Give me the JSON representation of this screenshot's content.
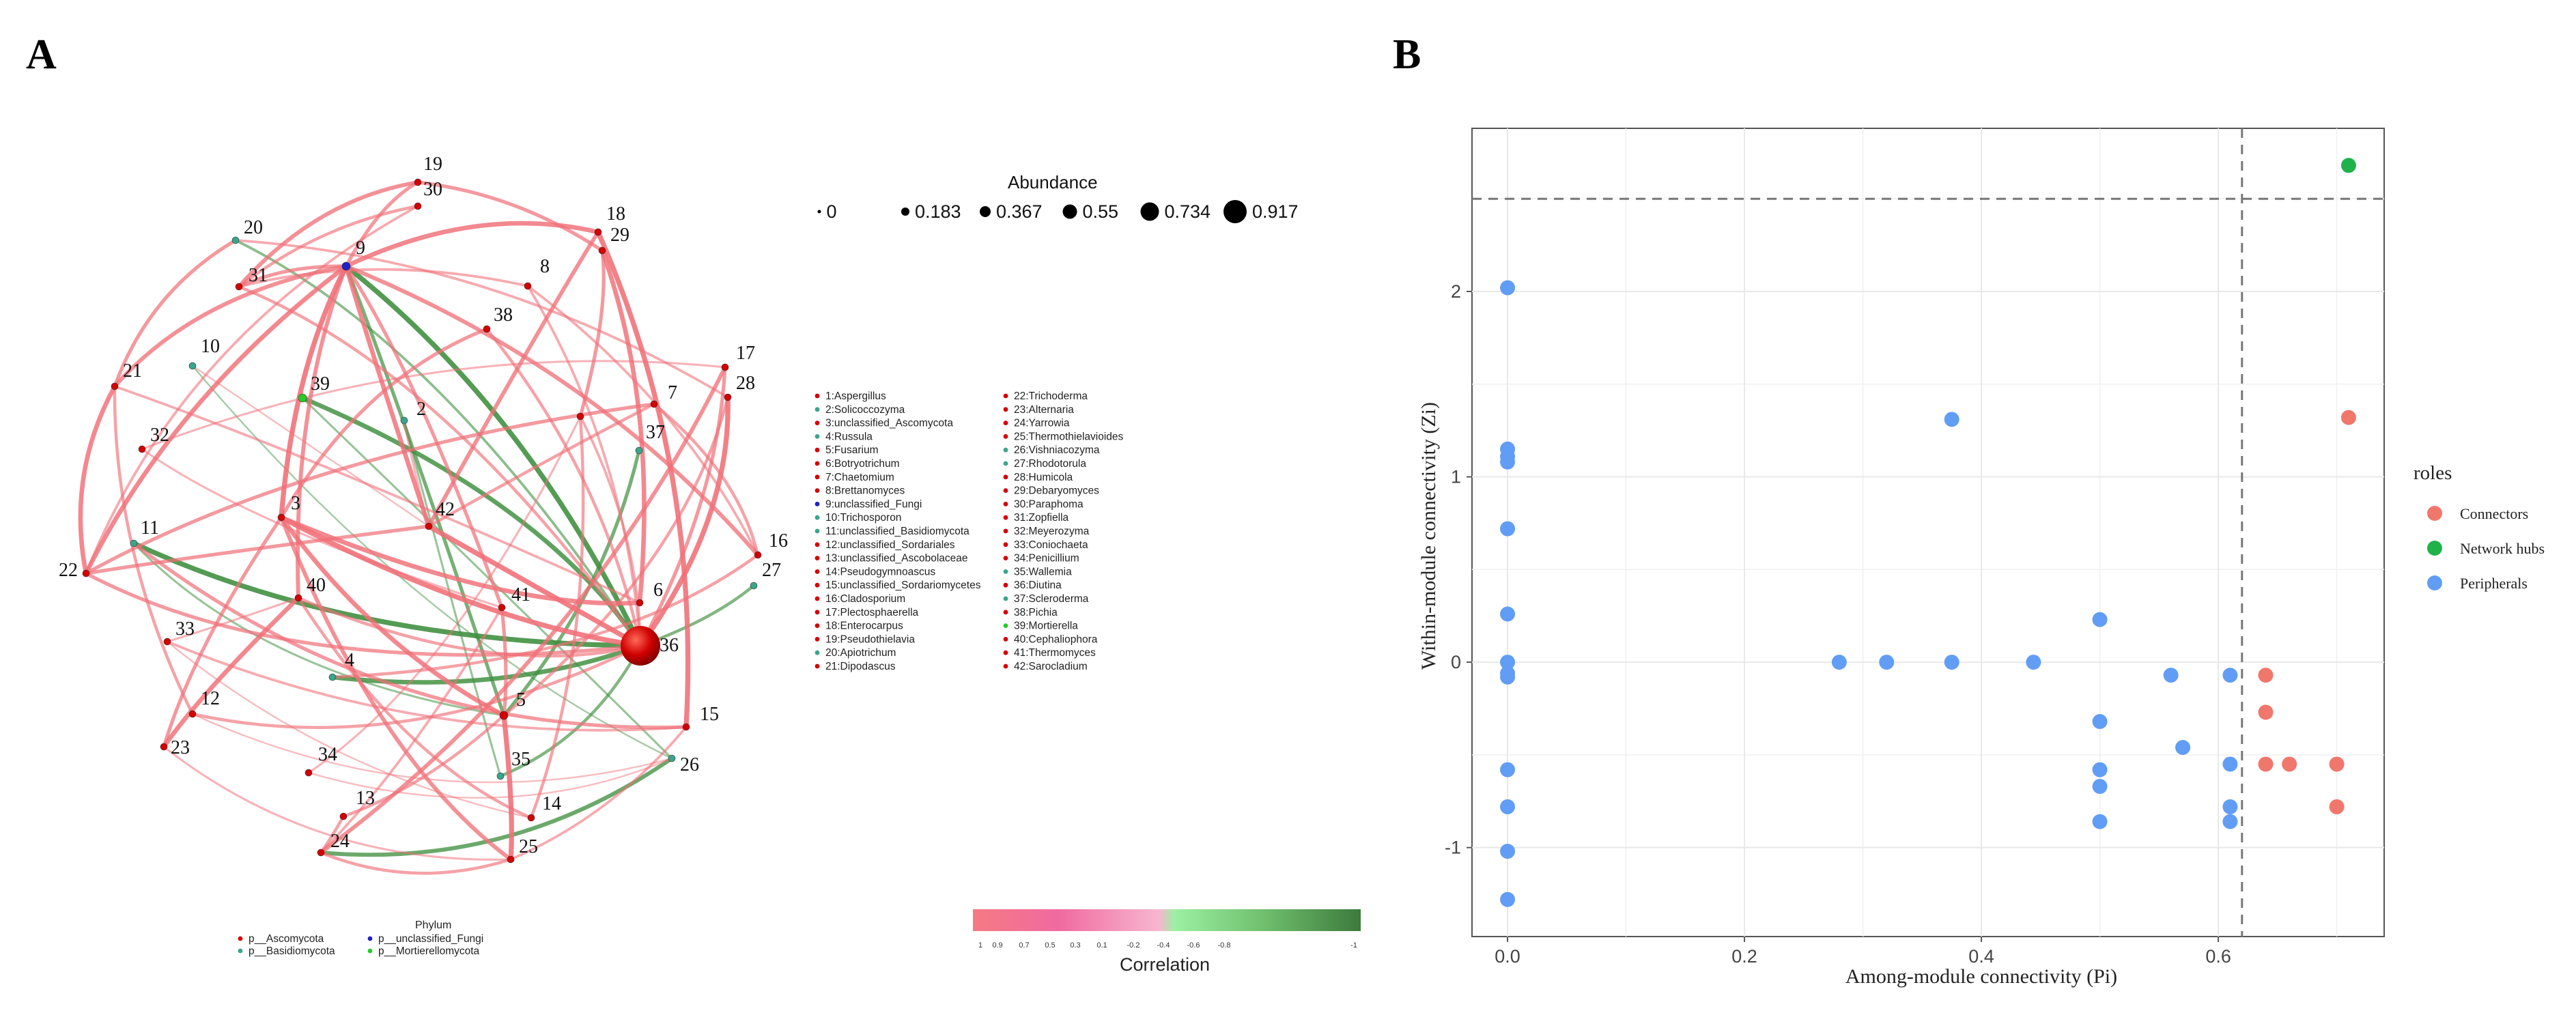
{
  "panels": {
    "a_label": "A",
    "b_label": "B"
  },
  "network": {
    "nodes": [
      {
        "id": "1",
        "phylum": "Ascomycota",
        "abundance": 0.01
      },
      {
        "id": "2",
        "phylum": "Basidiomycota",
        "abundance": 0.01
      },
      {
        "id": "3",
        "phylum": "Ascomycota",
        "abundance": 0.01
      },
      {
        "id": "4",
        "phylum": "Basidiomycota",
        "abundance": 0.01
      },
      {
        "id": "5",
        "phylum": "Ascomycota",
        "abundance": 0.02
      },
      {
        "id": "6",
        "phylum": "Ascomycota",
        "abundance": 0.01
      },
      {
        "id": "7",
        "phylum": "Ascomycota",
        "abundance": 0.01
      },
      {
        "id": "8",
        "phylum": "Ascomycota",
        "abundance": 0.01
      },
      {
        "id": "9",
        "phylum": "unclassified_Fungi",
        "abundance": 0.02
      },
      {
        "id": "10",
        "phylum": "Basidiomycota",
        "abundance": 0.01
      },
      {
        "id": "11",
        "phylum": "Basidiomycota",
        "abundance": 0.01
      },
      {
        "id": "12",
        "phylum": "Ascomycota",
        "abundance": 0.01
      },
      {
        "id": "13",
        "phylum": "Ascomycota",
        "abundance": 0.01
      },
      {
        "id": "14",
        "phylum": "Ascomycota",
        "abundance": 0.01
      },
      {
        "id": "15",
        "phylum": "Ascomycota",
        "abundance": 0.01
      },
      {
        "id": "16",
        "phylum": "Ascomycota",
        "abundance": 0.01
      },
      {
        "id": "17",
        "phylum": "Ascomycota",
        "abundance": 0.01
      },
      {
        "id": "18",
        "phylum": "Ascomycota",
        "abundance": 0.01
      },
      {
        "id": "19",
        "phylum": "Ascomycota",
        "abundance": 0.01
      },
      {
        "id": "20",
        "phylum": "Basidiomycota",
        "abundance": 0.01
      },
      {
        "id": "21",
        "phylum": "Ascomycota",
        "abundance": 0.01
      },
      {
        "id": "22",
        "phylum": "Ascomycota",
        "abundance": 0.01
      },
      {
        "id": "23",
        "phylum": "Ascomycota",
        "abundance": 0.01
      },
      {
        "id": "24",
        "phylum": "Ascomycota",
        "abundance": 0.01
      },
      {
        "id": "25",
        "phylum": "Ascomycota",
        "abundance": 0.01
      },
      {
        "id": "26",
        "phylum": "Basidiomycota",
        "abundance": 0.01
      },
      {
        "id": "27",
        "phylum": "Basidiomycota",
        "abundance": 0.01
      },
      {
        "id": "28",
        "phylum": "Ascomycota",
        "abundance": 0.01
      },
      {
        "id": "29",
        "phylum": "Ascomycota",
        "abundance": 0.01
      },
      {
        "id": "30",
        "phylum": "Ascomycota",
        "abundance": 0.01
      },
      {
        "id": "31",
        "phylum": "Ascomycota",
        "abundance": 0.01
      },
      {
        "id": "32",
        "phylum": "Ascomycota",
        "abundance": 0.01
      },
      {
        "id": "33",
        "phylum": "Ascomycota",
        "abundance": 0.01
      },
      {
        "id": "34",
        "phylum": "Ascomycota",
        "abundance": 0.01
      },
      {
        "id": "35",
        "phylum": "Basidiomycota",
        "abundance": 0.01
      },
      {
        "id": "36",
        "phylum": "Ascomycota",
        "abundance": 0.917
      },
      {
        "id": "37",
        "phylum": "Basidiomycota",
        "abundance": 0.01
      },
      {
        "id": "38",
        "phylum": "Ascomycota",
        "abundance": 0.01
      },
      {
        "id": "39",
        "phylum": "Mortierellomycota",
        "abundance": 0.02
      },
      {
        "id": "40",
        "phylum": "Ascomycota",
        "abundance": 0.01
      },
      {
        "id": "41",
        "phylum": "Ascomycota",
        "abundance": 0.01
      },
      {
        "id": "42",
        "phylum": "Ascomycota",
        "abundance": 0.01
      }
    ],
    "edges": [
      {
        "s": "9",
        "t": "36",
        "r": -0.9
      },
      {
        "s": "9",
        "t": "5",
        "r": -0.6
      },
      {
        "s": "11",
        "t": "36",
        "r": -0.9
      },
      {
        "s": "39",
        "t": "36",
        "r": -0.8
      },
      {
        "s": "4",
        "t": "36",
        "r": -0.8
      },
      {
        "s": "24",
        "t": "26",
        "r": -0.7
      },
      {
        "s": "37",
        "t": "5",
        "r": -0.6
      },
      {
        "s": "20",
        "t": "36",
        "r": -0.4
      },
      {
        "s": "27",
        "t": "36",
        "r": -0.5
      },
      {
        "s": "35",
        "t": "36",
        "r": -0.5
      },
      {
        "s": "39",
        "t": "26",
        "r": -0.3
      },
      {
        "s": "11",
        "t": "5",
        "r": -0.3
      },
      {
        "s": "10",
        "t": "26",
        "r": -0.2
      },
      {
        "s": "2",
        "t": "35",
        "r": -0.3
      },
      {
        "s": "9",
        "t": "3",
        "r": 0.9
      },
      {
        "s": "9",
        "t": "42",
        "r": 0.8
      },
      {
        "s": "9",
        "t": "22",
        "r": 0.8
      },
      {
        "s": "9",
        "t": "18",
        "r": 0.8
      },
      {
        "s": "9",
        "t": "16",
        "r": 0.7
      },
      {
        "s": "9",
        "t": "21",
        "r": 0.7
      },
      {
        "s": "9",
        "t": "31",
        "r": 0.6
      },
      {
        "s": "9",
        "t": "19",
        "r": 0.6
      },
      {
        "s": "9",
        "t": "40",
        "r": 0.7
      },
      {
        "s": "9",
        "t": "41",
        "r": 0.6
      },
      {
        "s": "18",
        "t": "15",
        "r": 0.9
      },
      {
        "s": "18",
        "t": "42",
        "r": 0.7
      },
      {
        "s": "29",
        "t": "6",
        "r": 0.8
      },
      {
        "s": "29",
        "t": "1",
        "r": 0.6
      },
      {
        "s": "17",
        "t": "24",
        "r": 0.7
      },
      {
        "s": "28",
        "t": "36",
        "r": 0.9
      },
      {
        "s": "3",
        "t": "36",
        "r": 0.9
      },
      {
        "s": "3",
        "t": "6",
        "r": 0.8
      },
      {
        "s": "3",
        "t": "5",
        "r": 0.8
      },
      {
        "s": "3",
        "t": "25",
        "r": 0.7
      },
      {
        "s": "42",
        "t": "36",
        "r": 0.9
      },
      {
        "s": "42",
        "t": "22",
        "r": 0.6
      },
      {
        "s": "42",
        "t": "7",
        "r": 0.5
      },
      {
        "s": "5",
        "t": "25",
        "r": 0.9
      },
      {
        "s": "5",
        "t": "13",
        "r": 0.5
      },
      {
        "s": "22",
        "t": "21",
        "r": 0.8
      },
      {
        "s": "22",
        "t": "7",
        "r": 0.6
      },
      {
        "s": "21",
        "t": "20",
        "r": 0.6
      },
      {
        "s": "21",
        "t": "12",
        "r": 0.5
      },
      {
        "s": "23",
        "t": "40",
        "r": 0.8
      },
      {
        "s": "23",
        "t": "3",
        "r": 0.6
      },
      {
        "s": "12",
        "t": "36",
        "r": 0.5
      },
      {
        "s": "13",
        "t": "24",
        "r": 0.5
      },
      {
        "s": "24",
        "t": "25",
        "r": 0.5
      },
      {
        "s": "24",
        "t": "41",
        "r": 0.4
      },
      {
        "s": "14",
        "t": "40",
        "r": 0.5
      },
      {
        "s": "14",
        "t": "1",
        "r": 0.5
      },
      {
        "s": "15",
        "t": "11",
        "r": 0.6
      },
      {
        "s": "15",
        "t": "33",
        "r": 0.4
      },
      {
        "s": "16",
        "t": "4",
        "r": 0.5
      },
      {
        "s": "16",
        "t": "8",
        "r": 0.4
      },
      {
        "s": "19",
        "t": "31",
        "r": 0.7
      },
      {
        "s": "30",
        "t": "31",
        "r": 0.5
      },
      {
        "s": "30",
        "t": "22",
        "r": 0.4
      },
      {
        "s": "19",
        "t": "29",
        "r": 0.6
      },
      {
        "s": "38",
        "t": "3",
        "r": 0.6
      },
      {
        "s": "8",
        "t": "31",
        "r": 0.4
      },
      {
        "s": "32",
        "t": "41",
        "r": 0.3
      },
      {
        "s": "33",
        "t": "40",
        "r": 0.3
      },
      {
        "s": "34",
        "t": "1",
        "r": 0.3
      },
      {
        "s": "6",
        "t": "21",
        "r": 0.4
      },
      {
        "s": "7",
        "t": "16",
        "r": 0.5
      },
      {
        "s": "20",
        "t": "28",
        "r": 0.4
      },
      {
        "s": "10",
        "t": "42",
        "r": 0.2
      },
      {
        "s": "41",
        "t": "5",
        "r": 0.6
      },
      {
        "s": "40",
        "t": "36",
        "r": 0.5
      },
      {
        "s": "1",
        "t": "36",
        "r": 0.4
      },
      {
        "s": "31",
        "t": "36",
        "r": 0.5
      },
      {
        "s": "38",
        "t": "36",
        "r": 0.5
      },
      {
        "s": "2",
        "t": "42",
        "r": 0.3
      },
      {
        "s": "25",
        "t": "15",
        "r": 0.4
      },
      {
        "s": "34",
        "t": "26",
        "r": 0.2
      },
      {
        "s": "33",
        "t": "14",
        "r": 0.2
      },
      {
        "s": "23",
        "t": "25",
        "r": 0.3
      },
      {
        "s": "32",
        "t": "17",
        "r": 0.3
      },
      {
        "s": "12",
        "t": "26",
        "r": 0.2
      },
      {
        "s": "17",
        "t": "36",
        "r": 0.6
      },
      {
        "s": "28",
        "t": "5",
        "r": 0.5
      },
      {
        "s": "8",
        "t": "36",
        "r": 0.4
      },
      {
        "s": "22",
        "t": "36",
        "r": 0.6
      }
    ],
    "taxa_legend": [
      "1:Aspergillus",
      "2:Solicoccozyma",
      "3:unclassified_Ascomycota",
      "4:Russula",
      "5:Fusarium",
      "6:Botryotrichum",
      "7:Chaetomium",
      "8:Brettanomyces",
      "9:unclassified_Fungi",
      "10:Trichosporon",
      "11:unclassified_Basidiomycota",
      "12:unclassified_Sordariales",
      "13:unclassified_Ascobolaceae",
      "14:Pseudogymnoascus",
      "15:unclassified_Sordariomycetes",
      "16:Cladosporium",
      "17:Plectosphaerella",
      "18:Enterocarpus",
      "19:Pseudothielavia",
      "20:Apiotrichum",
      "21:Dipodascus",
      "22:Trichoderma",
      "23:Alternaria",
      "24:Yarrowia",
      "25:Thermothielavioides",
      "26:Vishniacozyma",
      "27:Rhodotorula",
      "28:Humicola",
      "29:Debaryomyces",
      "30:Paraphoma",
      "31:Zopfiella",
      "32:Meyerozyma",
      "33:Coniochaeta",
      "34:Penicillium",
      "35:Wallemia",
      "36:Diutina",
      "37:Scleroderma",
      "38:Pichia",
      "39:Mortierella",
      "40:Cephaliophora",
      "41:Thermomyces",
      "42:Sarocladium"
    ],
    "abundance_legend": {
      "title": "Abundance",
      "levels": [
        "0",
        "0.183",
        "0.367",
        "0.55",
        "0.734",
        "0.917"
      ]
    },
    "phylum_legend": {
      "title": "Phylum",
      "items": [
        {
          "label": "p__Ascomycota",
          "key": "Ascomycota"
        },
        {
          "label": "p__unclassified_Fungi",
          "key": "unclassified_Fungi"
        },
        {
          "label": "p__Basidiomycota",
          "key": "Basidiomycota"
        },
        {
          "label": "p__Mortierellomycota",
          "key": "Mortierellomycota"
        }
      ]
    },
    "correlation_legend": {
      "title": "Correlation",
      "ticks": [
        "1",
        "0.9",
        "0.7",
        "0.5",
        "0.3",
        "0.1",
        "-0.2",
        "-0.4",
        "-0.6",
        "-0.8",
        "-1"
      ]
    }
  },
  "chart_data": {
    "type": "scatter",
    "title": "",
    "xlabel": "Among-module connectivity (Pi)",
    "ylabel": "Within-module connectivity (Zi)",
    "xlim": [
      -0.03,
      0.74
    ],
    "ylim": [
      -1.48,
      2.88
    ],
    "xticks": [
      "0.0",
      "0.2",
      "0.4",
      "0.6"
    ],
    "yticks": [
      "-1",
      "0",
      "1",
      "2"
    ],
    "thresholds": {
      "pi": 0.62,
      "zi": 2.5
    },
    "legend_title": "roles",
    "series": [
      {
        "name": "Connectors",
        "color": "#f0776c",
        "points": [
          [
            0.64,
            -0.07
          ],
          [
            0.64,
            -0.27
          ],
          [
            0.64,
            -0.55
          ],
          [
            0.66,
            -0.55
          ],
          [
            0.7,
            -0.55
          ],
          [
            0.7,
            -0.78
          ],
          [
            0.71,
            1.32
          ]
        ]
      },
      {
        "name": "Network hubs",
        "color": "#1fb24a",
        "points": [
          [
            0.71,
            2.68
          ]
        ]
      },
      {
        "name": "Peripherals",
        "color": "#619df5",
        "points": [
          [
            0.0,
            2.02
          ],
          [
            0.0,
            1.15
          ],
          [
            0.0,
            1.11
          ],
          [
            0.0,
            1.08
          ],
          [
            0.0,
            0.72
          ],
          [
            0.0,
            0.26
          ],
          [
            0.0,
            0.0
          ],
          [
            0.0,
            -0.06
          ],
          [
            0.0,
            -0.08
          ],
          [
            0.0,
            -0.58
          ],
          [
            0.0,
            -0.78
          ],
          [
            0.0,
            -1.02
          ],
          [
            0.0,
            -1.28
          ],
          [
            0.28,
            0.0
          ],
          [
            0.32,
            0.0
          ],
          [
            0.375,
            1.31
          ],
          [
            0.375,
            0.0
          ],
          [
            0.444,
            0.0
          ],
          [
            0.5,
            0.23
          ],
          [
            0.5,
            -0.32
          ],
          [
            0.5,
            -0.58
          ],
          [
            0.5,
            -0.67
          ],
          [
            0.5,
            -0.86
          ],
          [
            0.56,
            -0.07
          ],
          [
            0.57,
            -0.46
          ],
          [
            0.61,
            -0.07
          ],
          [
            0.61,
            -0.55
          ],
          [
            0.61,
            -0.78
          ],
          [
            0.61,
            -0.86
          ]
        ]
      }
    ]
  },
  "colors": {
    "Ascomycota": "#d40000",
    "Basidiomycota": "#3aa58a",
    "unclassified_Fungi": "#1e22c8",
    "Mortierellomycota": "#26cc26",
    "positive_edge": "#f07078",
    "negative_edge": "#3f8f3f",
    "grid": "#e8e8e8",
    "panel_border": "#666666"
  }
}
